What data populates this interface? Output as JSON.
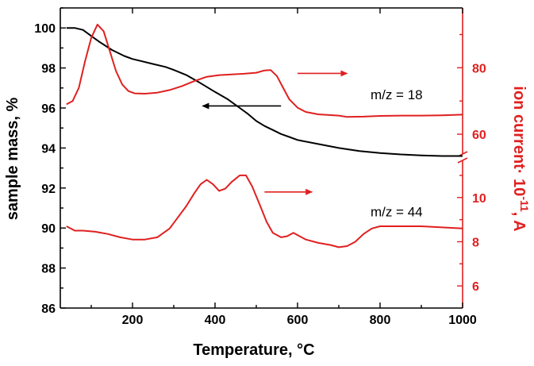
{
  "chart_data": {
    "type": "line",
    "xlabel": "Temperature, °C",
    "xlim": [
      25,
      1000
    ],
    "x_ticks": [
      200,
      400,
      600,
      800,
      1000
    ],
    "x_tick_labels": [
      "200",
      "400",
      "600",
      "800",
      "1000"
    ],
    "left_axis": {
      "label": "sample mass, %",
      "ylim": [
        86,
        101
      ],
      "ticks": [
        86,
        88,
        90,
        92,
        94,
        96,
        98,
        100
      ],
      "tick_labels": [
        "86",
        "88",
        "90",
        "92",
        "94",
        "96",
        "98",
        "100"
      ],
      "color": "#000000"
    },
    "right_axis": {
      "label_main": "ion current· 10",
      "label_exp": "-11",
      "label_unit": ", A",
      "color": "#e02020",
      "broken": true,
      "upper_segment": {
        "range": [
          55,
          98
        ],
        "ticks": [
          60,
          80
        ],
        "tick_labels": [
          "60",
          "80"
        ]
      },
      "lower_segment": {
        "range": [
          5,
          11.5
        ],
        "ticks": [
          6,
          8,
          10
        ],
        "tick_labels": [
          "6",
          "8",
          "10"
        ]
      }
    },
    "series": [
      {
        "axis": "left",
        "color": "#000000",
        "points": [
          [
            40,
            100.0
          ],
          [
            60,
            100.0
          ],
          [
            80,
            99.9
          ],
          [
            100,
            99.6
          ],
          [
            120,
            99.3
          ],
          [
            150,
            98.9
          ],
          [
            180,
            98.6
          ],
          [
            200,
            98.45
          ],
          [
            220,
            98.35
          ],
          [
            250,
            98.2
          ],
          [
            280,
            98.05
          ],
          [
            300,
            97.9
          ],
          [
            330,
            97.65
          ],
          [
            360,
            97.3
          ],
          [
            400,
            96.8
          ],
          [
            430,
            96.45
          ],
          [
            460,
            96.0
          ],
          [
            480,
            95.7
          ],
          [
            500,
            95.35
          ],
          [
            520,
            95.1
          ],
          [
            540,
            94.9
          ],
          [
            560,
            94.7
          ],
          [
            580,
            94.55
          ],
          [
            600,
            94.4
          ],
          [
            650,
            94.2
          ],
          [
            700,
            94.0
          ],
          [
            750,
            93.85
          ],
          [
            800,
            93.75
          ],
          [
            850,
            93.68
          ],
          [
            900,
            93.63
          ],
          [
            950,
            93.6
          ],
          [
            1000,
            93.6
          ]
        ]
      },
      {
        "axis": "right-upper",
        "color": "#e02020",
        "annotation": "m/z = 18",
        "points": [
          [
            40,
            69
          ],
          [
            55,
            70
          ],
          [
            70,
            74
          ],
          [
            85,
            82
          ],
          [
            100,
            89
          ],
          [
            115,
            93
          ],
          [
            130,
            91
          ],
          [
            145,
            85
          ],
          [
            160,
            79
          ],
          [
            175,
            75
          ],
          [
            190,
            73
          ],
          [
            205,
            72.3
          ],
          [
            230,
            72.2
          ],
          [
            260,
            72.5
          ],
          [
            290,
            73.3
          ],
          [
            320,
            74.5
          ],
          [
            350,
            76
          ],
          [
            380,
            77.3
          ],
          [
            410,
            77.8
          ],
          [
            440,
            78
          ],
          [
            470,
            78.2
          ],
          [
            500,
            78.5
          ],
          [
            520,
            79.2
          ],
          [
            535,
            79.3
          ],
          [
            550,
            77.5
          ],
          [
            565,
            74
          ],
          [
            580,
            70.5
          ],
          [
            600,
            68
          ],
          [
            620,
            66.7
          ],
          [
            650,
            66
          ],
          [
            700,
            65.6
          ],
          [
            720,
            65.2
          ],
          [
            760,
            65.3
          ],
          [
            800,
            65.5
          ],
          [
            850,
            65.6
          ],
          [
            900,
            65.6
          ],
          [
            950,
            65.7
          ],
          [
            1000,
            65.9
          ]
        ]
      },
      {
        "axis": "right-lower",
        "color": "#e02020",
        "annotation": "m/z = 44",
        "points": [
          [
            40,
            8.7
          ],
          [
            60,
            8.5
          ],
          [
            80,
            8.5
          ],
          [
            110,
            8.45
          ],
          [
            140,
            8.35
          ],
          [
            170,
            8.2
          ],
          [
            200,
            8.1
          ],
          [
            230,
            8.1
          ],
          [
            260,
            8.2
          ],
          [
            290,
            8.6
          ],
          [
            310,
            9.1
          ],
          [
            330,
            9.6
          ],
          [
            350,
            10.2
          ],
          [
            365,
            10.6
          ],
          [
            380,
            10.8
          ],
          [
            395,
            10.6
          ],
          [
            410,
            10.3
          ],
          [
            425,
            10.4
          ],
          [
            440,
            10.7
          ],
          [
            460,
            11.0
          ],
          [
            475,
            11.0
          ],
          [
            490,
            10.5
          ],
          [
            510,
            9.6
          ],
          [
            525,
            8.9
          ],
          [
            540,
            8.4
          ],
          [
            560,
            8.2
          ],
          [
            575,
            8.25
          ],
          [
            590,
            8.4
          ],
          [
            600,
            8.3
          ],
          [
            620,
            8.1
          ],
          [
            650,
            7.95
          ],
          [
            680,
            7.85
          ],
          [
            700,
            7.75
          ],
          [
            720,
            7.8
          ],
          [
            740,
            8.0
          ],
          [
            760,
            8.35
          ],
          [
            780,
            8.6
          ],
          [
            800,
            8.7
          ],
          [
            850,
            8.7
          ],
          [
            900,
            8.7
          ],
          [
            950,
            8.65
          ],
          [
            1000,
            8.6
          ]
        ]
      }
    ],
    "annotations": [
      {
        "text": "m/z = 18",
        "x": 840,
        "y_axis": "right-upper",
        "y": 70.5
      },
      {
        "text": "m/z = 44",
        "x": 840,
        "y_axis": "right-lower",
        "y": 9.15
      }
    ],
    "arrows": [
      {
        "points_to": "left",
        "color": "#000000",
        "x_from": 560,
        "x_to": 370,
        "y_axis": "left",
        "y": 96.1
      },
      {
        "points_to": "right",
        "color": "#e02020",
        "x_from": 600,
        "x_to": 720,
        "y_axis": "right-upper",
        "y": 78.3
      },
      {
        "points_to": "right",
        "color": "#e02020",
        "x_from": 520,
        "x_to": 635,
        "y_axis": "right-lower",
        "y": 10.25
      }
    ]
  }
}
